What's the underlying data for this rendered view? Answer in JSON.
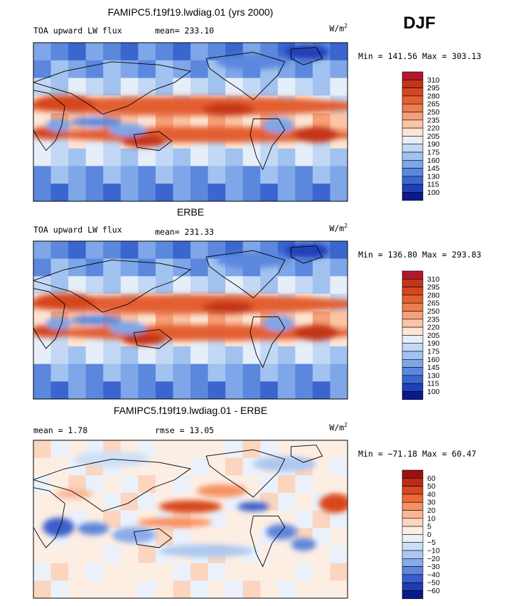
{
  "season": "DJF",
  "units": "W/m",
  "units_sup": "2",
  "chart_data": [
    {
      "type": "heatmap",
      "title": "FAMIPC5.f19f19.lwdiag.01 (yrs 2000)",
      "field": "TOA upward LW flux",
      "stat1": "mean= 233.10",
      "stat2": "",
      "minmax": "Min = 141.56 Max = 303.13",
      "min": 141.56,
      "max": 303.13,
      "mean": 233.1,
      "colorbar_levels": [
        "310",
        "295",
        "280",
        "265",
        "250",
        "235",
        "220",
        "205",
        "190",
        "175",
        "160",
        "145",
        "130",
        "115",
        "100"
      ],
      "colorbar_colors": [
        "#b2182b",
        "#c43519",
        "#d6451f",
        "#e35f32",
        "#ee7d4f",
        "#f6a079",
        "#fac5a5",
        "#fde4d3",
        "#e6eefa",
        "#c3d8f5",
        "#a2c2ef",
        "#7ea6e8",
        "#5b88dd",
        "#3b66cf",
        "#2140b8",
        "#0a1a8a"
      ],
      "map": "mean"
    },
    {
      "type": "heatmap",
      "title": "ERBE",
      "field": "TOA upward LW flux",
      "stat1": "mean= 231.33",
      "stat2": "",
      "minmax": "Min = 136.80 Max = 293.83",
      "min": 136.8,
      "max": 293.83,
      "mean": 231.33,
      "colorbar_levels": [
        "310",
        "295",
        "280",
        "265",
        "250",
        "235",
        "220",
        "205",
        "190",
        "175",
        "160",
        "145",
        "130",
        "115",
        "100"
      ],
      "colorbar_colors": [
        "#b2182b",
        "#c43519",
        "#d6451f",
        "#e35f32",
        "#ee7d4f",
        "#f6a079",
        "#fac5a5",
        "#fde4d3",
        "#e6eefa",
        "#c3d8f5",
        "#a2c2ef",
        "#7ea6e8",
        "#5b88dd",
        "#3b66cf",
        "#2140b8",
        "#0a1a8a"
      ],
      "map": "mean"
    },
    {
      "type": "heatmap",
      "title": "FAMIPC5.f19f19.lwdiag.01 - ERBE",
      "field": "",
      "stat1": "mean =   1.78",
      "stat2": "rmse =  13.05",
      "minmax": "Min = −71.18 Max =  60.47",
      "min": -71.18,
      "max": 60.47,
      "mean": 1.78,
      "colorbar_levels": [
        "60",
        "50",
        "40",
        "30",
        "20",
        "10",
        "5",
        "0",
        "−5",
        "−10",
        "−20",
        "−30",
        "−40",
        "−50",
        "−60"
      ],
      "colorbar_colors": [
        "#9a0f0f",
        "#bd2a1a",
        "#d8461f",
        "#ec6a38",
        "#f7905f",
        "#fab694",
        "#fcd5bf",
        "#fdeee4",
        "#eaf1fb",
        "#cddff6",
        "#adc8f0",
        "#88aae8",
        "#5e86dc",
        "#3a5fcc",
        "#1e3bb2",
        "#0a1a88"
      ],
      "map": "diff"
    }
  ]
}
